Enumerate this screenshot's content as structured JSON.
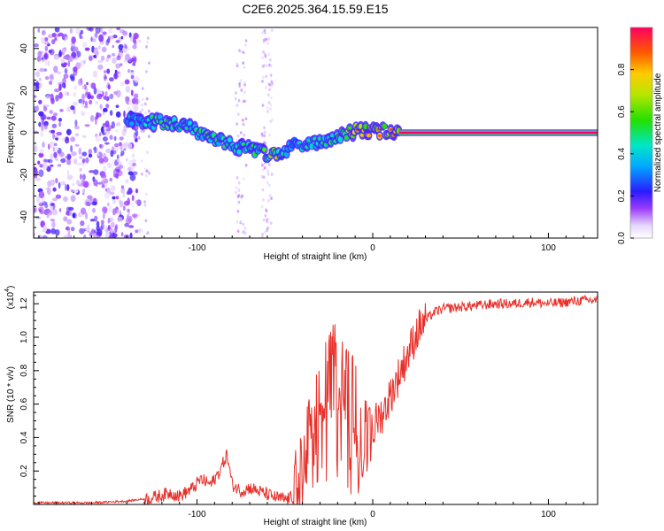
{
  "figure_title": "C2E6.2025.364.15.59.E15",
  "chart_data": [
    {
      "type": "heatmap",
      "title": "",
      "xlabel": "Height of straight line (km)",
      "ylabel": "Frequency (Hz)",
      "xlim": [
        -193,
        128
      ],
      "ylim": [
        -50,
        50
      ],
      "xticks": [
        -100,
        0,
        100
      ],
      "xtick_labels": [
        "-100",
        "0",
        "100"
      ],
      "yticks": [
        -40,
        -20,
        0,
        20,
        40
      ],
      "ytick_labels": [
        "-40",
        "-20",
        "0",
        "20",
        "40"
      ],
      "colorbar": {
        "label": "Normalized spectral amplitude",
        "range": [
          0,
          1
        ],
        "ticks": [
          0.0,
          0.2,
          0.4,
          0.6,
          0.8
        ],
        "tick_labels": [
          "0.0",
          "0.2",
          "0.4",
          "0.6",
          "0.8"
        ]
      },
      "ridge_track": {
        "height_km": [
          -140,
          -125,
          -115,
          -105,
          -95,
          -85,
          -75,
          -65,
          -55,
          -50,
          -45,
          -40,
          -30,
          -20,
          -10,
          0,
          10,
          15,
          128
        ],
        "frequency_hz": [
          6,
          5,
          5,
          3,
          -2,
          -5,
          -7,
          -9,
          -11,
          -10,
          -6,
          -5,
          -4,
          -2,
          1,
          1,
          1,
          0,
          0
        ],
        "peak_amplitude": [
          0.45,
          0.55,
          0.6,
          0.5,
          0.6,
          0.55,
          0.6,
          0.55,
          0.8,
          0.5,
          0.45,
          0.5,
          0.5,
          0.65,
          0.95,
          0.9,
          0.95,
          0.95,
          1.0
        ]
      },
      "noise_region_height_km": [
        -193,
        -133
      ]
    },
    {
      "type": "line",
      "title": "",
      "xlabel": "Height of straight line (km)",
      "ylabel": "SNR (10 * v/v)",
      "ylabel_scale": "(x10",
      "ylabel_scale_exp": "4",
      "ylabel_scale_close": ")",
      "xlim": [
        -193,
        128
      ],
      "ylim": [
        0,
        1.27
      ],
      "xticks": [
        -100,
        0,
        100
      ],
      "xtick_labels": [
        "-100",
        "0",
        "100"
      ],
      "yticks": [
        0.2,
        0.4,
        0.6,
        0.8,
        1.0,
        1.2
      ],
      "ytick_labels": [
        "0.2",
        "0.4",
        "0.6",
        "0.8",
        "1.0",
        "1.2"
      ],
      "series": [
        {
          "name": "SNR",
          "color": "#e8302a",
          "x": [
            -193,
            -180,
            -160,
            -140,
            -125,
            -115,
            -110,
            -102,
            -98,
            -92,
            -87,
            -83,
            -80,
            -75,
            -70,
            -65,
            -60,
            -55,
            -50,
            -46,
            -42,
            -38,
            -35,
            -30,
            -25,
            -20,
            -15,
            -10,
            -5,
            -2,
            2,
            6,
            10,
            14,
            18,
            22,
            26,
            30,
            35,
            40,
            50,
            60,
            70,
            80,
            90,
            100,
            110,
            120,
            128
          ],
          "y": [
            0.01,
            0.01,
            0.01,
            0.02,
            0.04,
            0.07,
            0.05,
            0.1,
            0.15,
            0.12,
            0.2,
            0.3,
            0.12,
            0.08,
            0.1,
            0.08,
            0.06,
            0.04,
            0.03,
            0.04,
            0.08,
            0.3,
            0.45,
            0.6,
            0.75,
            0.85,
            0.7,
            0.6,
            0.4,
            0.3,
            0.5,
            0.55,
            0.65,
            0.75,
            0.85,
            0.95,
            1.05,
            1.1,
            1.15,
            1.17,
            1.18,
            1.19,
            1.2,
            1.2,
            1.21,
            1.2,
            1.21,
            1.22,
            1.22
          ]
        }
      ]
    }
  ]
}
